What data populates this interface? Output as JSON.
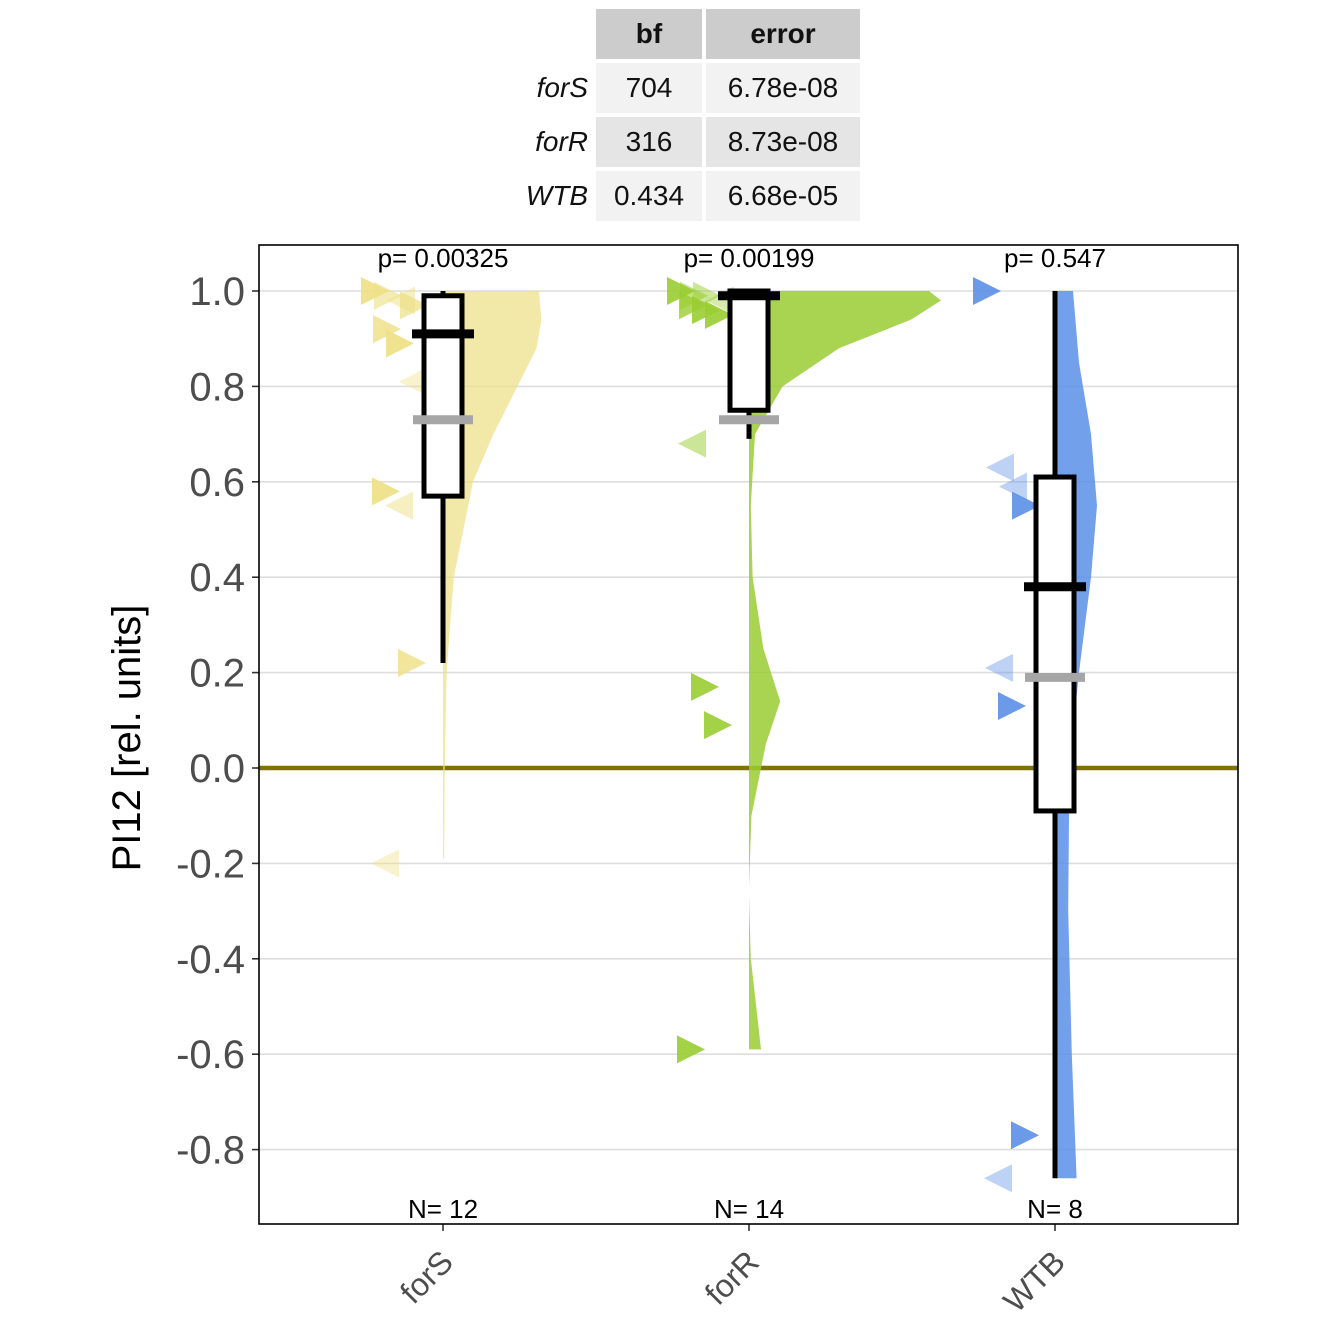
{
  "table": {
    "headers": [
      "",
      "bf",
      "error"
    ],
    "rows": [
      {
        "name": "forS",
        "bf": "704",
        "error": "6.78e-08"
      },
      {
        "name": "forR",
        "bf": "316",
        "error": "8.73e-08"
      },
      {
        "name": "WTB",
        "bf": "0.434",
        "error": "6.68e-05"
      }
    ]
  },
  "chart_data": {
    "type": "box",
    "ylabel": "PI12 [rel. units]",
    "xlabel": "",
    "ylim": [
      -0.95,
      1.1
    ],
    "yticks": [
      -0.8,
      -0.6,
      -0.4,
      -0.2,
      0.0,
      0.2,
      0.4,
      0.6,
      0.8,
      1.0
    ],
    "ytick_labels": [
      "-0.8",
      "-0.6",
      "-0.4",
      "-0.2",
      "0.0",
      "0.2",
      "0.4",
      "0.6",
      "0.8",
      "1.0"
    ],
    "grid": "horizontal",
    "reference_line": 0.0,
    "reference_color": "#7f7300",
    "categories": [
      "forS",
      "forR",
      "WTB"
    ],
    "groups": [
      {
        "name": "forS",
        "color": "#ede083",
        "p_label": "p= 0.00325",
        "n_label": "N= 12",
        "box": {
          "q1": 0.57,
          "median": 0.91,
          "q3": 0.99,
          "whisker_low": 0.22,
          "whisker_high": 1.0
        },
        "mean": 0.73,
        "density_range": [
          -0.19,
          1.0
        ],
        "density": [
          [
            -0.19,
            0.01
          ],
          [
            0.0,
            0.015
          ],
          [
            0.2,
            0.03
          ],
          [
            0.4,
            0.09
          ],
          [
            0.6,
            0.25
          ],
          [
            0.7,
            0.42
          ],
          [
            0.8,
            0.62
          ],
          [
            0.88,
            0.78
          ],
          [
            0.94,
            0.82
          ],
          [
            1.0,
            0.8
          ]
        ],
        "points": [
          {
            "y": 1.0,
            "dir": "right",
            "alpha": 0.9
          },
          {
            "y": 0.99,
            "dir": "right",
            "alpha": 0.6
          },
          {
            "y": 0.98,
            "dir": "left",
            "alpha": 0.5
          },
          {
            "y": 0.97,
            "dir": "right",
            "alpha": 0.7
          },
          {
            "y": 0.92,
            "dir": "right",
            "alpha": 0.8
          },
          {
            "y": 0.89,
            "dir": "right",
            "alpha": 0.9
          },
          {
            "y": 0.81,
            "dir": "left",
            "alpha": 0.4
          },
          {
            "y": 0.58,
            "dir": "right",
            "alpha": 0.9
          },
          {
            "y": 0.55,
            "dir": "left",
            "alpha": 0.5
          },
          {
            "y": 0.22,
            "dir": "right",
            "alpha": 0.8
          },
          {
            "y": -0.2,
            "dir": "left",
            "alpha": 0.4
          }
        ]
      },
      {
        "name": "forR",
        "color": "#9acd32",
        "p_label": "p= 0.00199",
        "n_label": "N= 14",
        "box": {
          "q1": 0.75,
          "median": 0.99,
          "q3": 1.0,
          "whisker_low": 0.69,
          "whisker_high": 1.0
        },
        "mean": 0.73,
        "density_range": [
          -0.59,
          1.0
        ],
        "density": [
          [
            -0.59,
            0.1
          ],
          [
            -0.5,
            0.06
          ],
          [
            -0.4,
            0.015
          ],
          [
            -0.27,
            0.0
          ],
          [
            -0.25,
            0.0
          ],
          [
            -0.1,
            0.02
          ],
          [
            0.05,
            0.14
          ],
          [
            0.14,
            0.26
          ],
          [
            0.25,
            0.12
          ],
          [
            0.4,
            0.03
          ],
          [
            0.55,
            0.015
          ],
          [
            0.7,
            0.05
          ],
          [
            0.8,
            0.28
          ],
          [
            0.88,
            0.75
          ],
          [
            0.94,
            1.35
          ],
          [
            0.98,
            1.6
          ],
          [
            1.0,
            1.5
          ]
        ],
        "points": [
          {
            "y": 1.0,
            "dir": "right",
            "alpha": 0.9
          },
          {
            "y": 0.99,
            "dir": "right",
            "alpha": 0.6
          },
          {
            "y": 0.99,
            "dir": "right",
            "alpha": 0.5
          },
          {
            "y": 0.98,
            "dir": "left",
            "alpha": 0.4
          },
          {
            "y": 0.97,
            "dir": "right",
            "alpha": 0.8
          },
          {
            "y": 0.96,
            "dir": "right",
            "alpha": 0.9
          },
          {
            "y": 0.95,
            "dir": "right",
            "alpha": 0.9
          },
          {
            "y": 0.68,
            "dir": "left",
            "alpha": 0.5
          },
          {
            "y": 0.17,
            "dir": "right",
            "alpha": 0.9
          },
          {
            "y": 0.09,
            "dir": "right",
            "alpha": 0.9
          },
          {
            "y": -0.59,
            "dir": "right",
            "alpha": 0.9
          }
        ]
      },
      {
        "name": "WTB",
        "color": "#5a8fe6",
        "p_label": "p= 0.547",
        "n_label": "N= 8",
        "box": {
          "q1": -0.09,
          "median": 0.38,
          "q3": 0.61,
          "whisker_low": -0.86,
          "whisker_high": 1.0
        },
        "mean": 0.19,
        "density_range": [
          -0.86,
          1.0
        ],
        "density": [
          [
            -0.86,
            0.18
          ],
          [
            -0.6,
            0.14
          ],
          [
            -0.3,
            0.11
          ],
          [
            0.0,
            0.12
          ],
          [
            0.2,
            0.2
          ],
          [
            0.4,
            0.3
          ],
          [
            0.55,
            0.35
          ],
          [
            0.7,
            0.3
          ],
          [
            0.85,
            0.2
          ],
          [
            1.0,
            0.15
          ]
        ],
        "points": [
          {
            "y": 1.0,
            "dir": "right",
            "alpha": 0.9
          },
          {
            "y": 0.63,
            "dir": "left",
            "alpha": 0.4
          },
          {
            "y": 0.59,
            "dir": "left",
            "alpha": 0.4
          },
          {
            "y": 0.55,
            "dir": "right",
            "alpha": 0.9
          },
          {
            "y": 0.21,
            "dir": "left",
            "alpha": 0.4
          },
          {
            "y": 0.13,
            "dir": "right",
            "alpha": 0.9
          },
          {
            "y": -0.77,
            "dir": "right",
            "alpha": 0.9
          },
          {
            "y": -0.86,
            "dir": "left",
            "alpha": 0.4
          }
        ]
      }
    ]
  }
}
